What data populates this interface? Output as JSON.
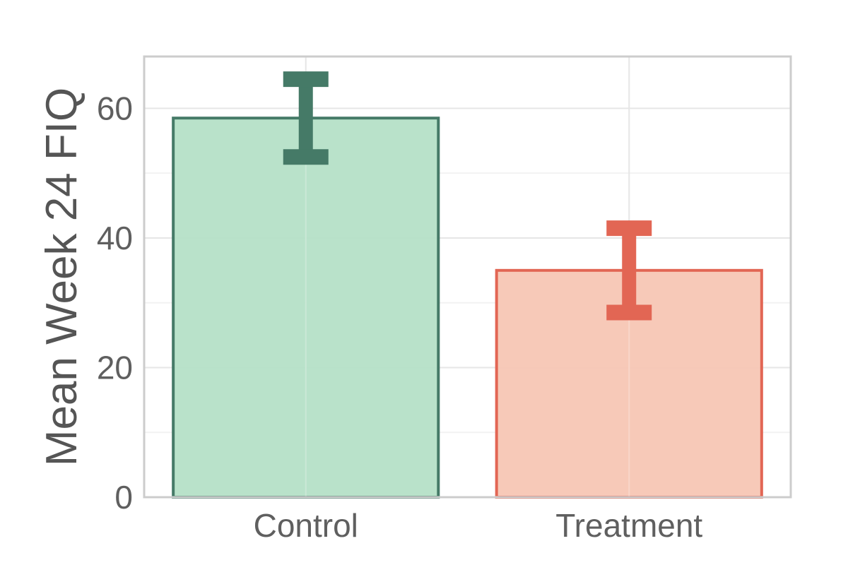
{
  "chart_data": {
    "type": "bar",
    "title": "",
    "xlabel": "",
    "ylabel": "Mean Week 24 FIQ",
    "categories": [
      "Control",
      "Treatment"
    ],
    "series": [
      {
        "values": [
          58.5,
          35.0
        ],
        "error_low": [
          52.5,
          28.5
        ],
        "error_high": [
          64.5,
          41.5
        ]
      }
    ],
    "ylim": [
      0,
      68
    ],
    "yticks": [
      0,
      20,
      40,
      60
    ],
    "grid": true,
    "legend": "none",
    "colors": {
      "Control": {
        "fill": "#b5e0c7",
        "stroke": "#457a67"
      },
      "Treatment": {
        "fill": "#f7c6b4",
        "stroke": "#e26654"
      },
      "grid": "#e6e6e6",
      "panel_border": "#cccccc"
    }
  }
}
